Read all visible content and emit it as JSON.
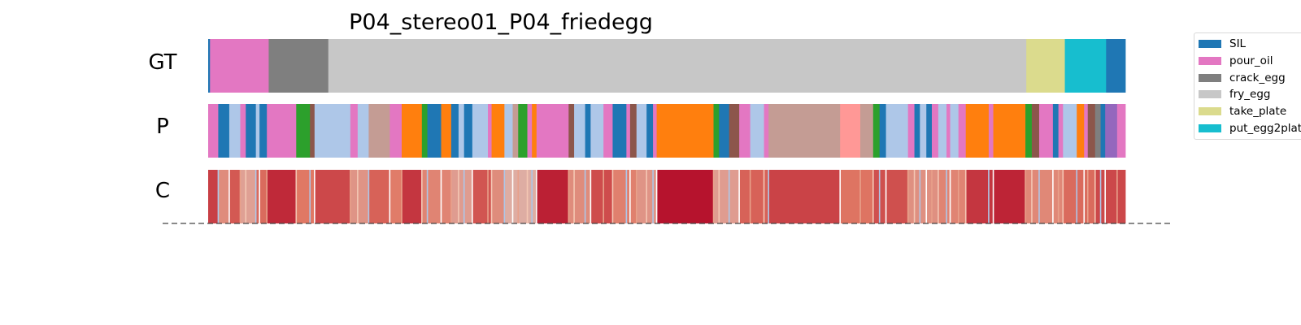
{
  "chart_data": {
    "type": "segmentation-timeline",
    "title": "P04_stereo01_P04_friedegg",
    "rows": [
      "GT",
      "P",
      "C"
    ],
    "legend": [
      {
        "name": "SIL",
        "color": "#1f77b4"
      },
      {
        "name": "pour_oil",
        "color": "#e377c2"
      },
      {
        "name": "crack_egg",
        "color": "#7f7f7f"
      },
      {
        "name": "fry_egg",
        "color": "#c7c7c7"
      },
      {
        "name": "take_plate",
        "color": "#dbdb8d"
      },
      {
        "name": "put_egg2plate",
        "color": "#17becf"
      }
    ],
    "x_range": [
      0,
      100
    ],
    "gt_segments": [
      {
        "label": "SIL",
        "start": 0,
        "end": 0.2
      },
      {
        "label": "pour_oil",
        "start": 0.2,
        "end": 6.6
      },
      {
        "label": "crack_egg",
        "start": 6.6,
        "end": 13.1
      },
      {
        "label": "fry_egg",
        "start": 13.1,
        "end": 89.2
      },
      {
        "label": "take_plate",
        "start": 89.2,
        "end": 93.4
      },
      {
        "label": "put_egg2plate",
        "start": 93.4,
        "end": 97.9
      },
      {
        "label": "SIL",
        "start": 97.9,
        "end": 100
      }
    ],
    "pred_segments": [
      {
        "color": "#e377c2",
        "start": 0,
        "end": 1.1
      },
      {
        "color": "#1f77b4",
        "start": 1.1,
        "end": 2.3
      },
      {
        "color": "#aec7e8",
        "start": 2.3,
        "end": 3.5
      },
      {
        "color": "#e377c2",
        "start": 3.5,
        "end": 4.1
      },
      {
        "color": "#1f77b4",
        "start": 4.1,
        "end": 5.2
      },
      {
        "color": "#aec7e8",
        "start": 5.2,
        "end": 5.6
      },
      {
        "color": "#1f77b4",
        "start": 5.6,
        "end": 6.4
      },
      {
        "color": "#e377c2",
        "start": 6.4,
        "end": 9.6
      },
      {
        "color": "#2ca02c",
        "start": 9.6,
        "end": 11.1
      },
      {
        "color": "#8c564b",
        "start": 11.1,
        "end": 11.6
      },
      {
        "color": "#aec7e8",
        "start": 11.6,
        "end": 15.5
      },
      {
        "color": "#e377c2",
        "start": 15.5,
        "end": 16.3
      },
      {
        "color": "#aec7e8",
        "start": 16.3,
        "end": 17.5
      },
      {
        "color": "#c49c94",
        "start": 17.5,
        "end": 19.8
      },
      {
        "color": "#e377c2",
        "start": 19.8,
        "end": 21.1
      },
      {
        "color": "#ff7f0e",
        "start": 21.1,
        "end": 23.3
      },
      {
        "color": "#2ca02c",
        "start": 23.3,
        "end": 23.9
      },
      {
        "color": "#1f77b4",
        "start": 23.9,
        "end": 25.4
      },
      {
        "color": "#ff7f0e",
        "start": 25.4,
        "end": 26.5
      },
      {
        "color": "#1f77b4",
        "start": 26.5,
        "end": 27.3
      },
      {
        "color": "#aec7e8",
        "start": 27.3,
        "end": 27.9
      },
      {
        "color": "#1f77b4",
        "start": 27.9,
        "end": 28.8
      },
      {
        "color": "#aec7e8",
        "start": 28.8,
        "end": 30.5
      },
      {
        "color": "#e377c2",
        "start": 30.5,
        "end": 30.9
      },
      {
        "color": "#ff7f0e",
        "start": 30.9,
        "end": 32.3
      },
      {
        "color": "#aec7e8",
        "start": 32.3,
        "end": 33.2
      },
      {
        "color": "#c49c94",
        "start": 33.2,
        "end": 33.8
      },
      {
        "color": "#2ca02c",
        "start": 33.8,
        "end": 34.8
      },
      {
        "color": "#e377c2",
        "start": 34.8,
        "end": 35.3
      },
      {
        "color": "#ff7f0e",
        "start": 35.3,
        "end": 35.8
      },
      {
        "color": "#e377c2",
        "start": 35.8,
        "end": 39.3
      },
      {
        "color": "#8c564b",
        "start": 39.3,
        "end": 39.9
      },
      {
        "color": "#aec7e8",
        "start": 39.9,
        "end": 41.1
      },
      {
        "color": "#1f77b4",
        "start": 41.1,
        "end": 41.7
      },
      {
        "color": "#aec7e8",
        "start": 41.7,
        "end": 43.1
      },
      {
        "color": "#e377c2",
        "start": 43.1,
        "end": 44.1
      },
      {
        "color": "#1f77b4",
        "start": 44.1,
        "end": 45.6
      },
      {
        "color": "#e377c2",
        "start": 45.6,
        "end": 46.0
      },
      {
        "color": "#8c564b",
        "start": 46.0,
        "end": 46.7
      },
      {
        "color": "#aec7e8",
        "start": 46.7,
        "end": 47.8
      },
      {
        "color": "#1f77b4",
        "start": 47.8,
        "end": 48.5
      },
      {
        "color": "#e377c2",
        "start": 48.5,
        "end": 48.9
      },
      {
        "color": "#ff7f0e",
        "start": 48.9,
        "end": 55.1
      },
      {
        "color": "#2ca02c",
        "start": 55.1,
        "end": 55.7
      },
      {
        "color": "#1f77b4",
        "start": 55.7,
        "end": 56.8
      },
      {
        "color": "#8c564b",
        "start": 56.8,
        "end": 57.9
      },
      {
        "color": "#e377c2",
        "start": 57.9,
        "end": 59.1
      },
      {
        "color": "#aec7e8",
        "start": 59.1,
        "end": 60.6
      },
      {
        "color": "#e377c2",
        "start": 60.6,
        "end": 61.1
      },
      {
        "color": "#c49c94",
        "start": 61.1,
        "end": 68.9
      },
      {
        "color": "#ff9896",
        "start": 68.9,
        "end": 71.1
      },
      {
        "color": "#c49c94",
        "start": 71.1,
        "end": 72.5
      },
      {
        "color": "#2ca02c",
        "start": 72.5,
        "end": 73.2
      },
      {
        "color": "#1f77b4",
        "start": 73.2,
        "end": 73.9
      },
      {
        "color": "#aec7e8",
        "start": 73.9,
        "end": 76.3
      },
      {
        "color": "#e377c2",
        "start": 76.3,
        "end": 77.0
      },
      {
        "color": "#1f77b4",
        "start": 77.0,
        "end": 77.6
      },
      {
        "color": "#aec7e8",
        "start": 77.6,
        "end": 78.3
      },
      {
        "color": "#1f77b4",
        "start": 78.3,
        "end": 78.9
      },
      {
        "color": "#e377c2",
        "start": 78.9,
        "end": 79.6
      },
      {
        "color": "#aec7e8",
        "start": 79.6,
        "end": 80.5
      },
      {
        "color": "#e377c2",
        "start": 80.5,
        "end": 80.9
      },
      {
        "color": "#aec7e8",
        "start": 80.9,
        "end": 81.8
      },
      {
        "color": "#e377c2",
        "start": 81.8,
        "end": 82.6
      },
      {
        "color": "#ff7f0e",
        "start": 82.6,
        "end": 85.1
      },
      {
        "color": "#e377c2",
        "start": 85.1,
        "end": 85.6
      },
      {
        "color": "#ff7f0e",
        "start": 85.6,
        "end": 89.1
      },
      {
        "color": "#2ca02c",
        "start": 89.1,
        "end": 89.8
      },
      {
        "color": "#8c564b",
        "start": 89.8,
        "end": 90.6
      },
      {
        "color": "#e377c2",
        "start": 90.6,
        "end": 92.1
      },
      {
        "color": "#1f77b4",
        "start": 92.1,
        "end": 92.7
      },
      {
        "color": "#e377c2",
        "start": 92.7,
        "end": 93.2
      },
      {
        "color": "#aec7e8",
        "start": 93.2,
        "end": 94.7
      },
      {
        "color": "#ff7f0e",
        "start": 94.7,
        "end": 95.5
      },
      {
        "color": "#e377c2",
        "start": 95.5,
        "end": 95.9
      },
      {
        "color": "#8c564b",
        "start": 95.9,
        "end": 96.7
      },
      {
        "color": "#7f7f7f",
        "start": 96.7,
        "end": 97.3
      },
      {
        "color": "#1f77b4",
        "start": 97.3,
        "end": 97.8
      },
      {
        "color": "#9467bd",
        "start": 97.8,
        "end": 99.1
      },
      {
        "color": "#e377c2",
        "start": 99.1,
        "end": 100
      }
    ],
    "confidence_segments": [
      {
        "start": 0,
        "end": 1.1,
        "value": 0.88
      },
      {
        "start": 1.1,
        "end": 2.3,
        "value": 0.7
      },
      {
        "start": 2.3,
        "end": 3.5,
        "value": 0.82
      },
      {
        "start": 3.5,
        "end": 5.2,
        "value": 0.65
      },
      {
        "start": 5.2,
        "end": 6.4,
        "value": 0.78
      },
      {
        "start": 6.4,
        "end": 9.6,
        "value": 0.93
      },
      {
        "start": 9.6,
        "end": 11.6,
        "value": 0.75
      },
      {
        "start": 11.6,
        "end": 15.5,
        "value": 0.86
      },
      {
        "start": 15.5,
        "end": 17.5,
        "value": 0.68
      },
      {
        "start": 17.5,
        "end": 19.8,
        "value": 0.8
      },
      {
        "start": 19.8,
        "end": 21.1,
        "value": 0.74
      },
      {
        "start": 21.1,
        "end": 23.3,
        "value": 0.9
      },
      {
        "start": 23.3,
        "end": 26.5,
        "value": 0.72
      },
      {
        "start": 26.5,
        "end": 28.8,
        "value": 0.66
      },
      {
        "start": 28.8,
        "end": 30.9,
        "value": 0.83
      },
      {
        "start": 30.9,
        "end": 32.3,
        "value": 0.7
      },
      {
        "start": 32.3,
        "end": 35.8,
        "value": 0.62
      },
      {
        "start": 35.8,
        "end": 39.3,
        "value": 0.95
      },
      {
        "start": 39.3,
        "end": 41.7,
        "value": 0.7
      },
      {
        "start": 41.7,
        "end": 44.1,
        "value": 0.85
      },
      {
        "start": 44.1,
        "end": 46.7,
        "value": 0.73
      },
      {
        "start": 46.7,
        "end": 48.9,
        "value": 0.68
      },
      {
        "start": 48.9,
        "end": 55.1,
        "value": 0.98
      },
      {
        "start": 55.1,
        "end": 57.9,
        "value": 0.66
      },
      {
        "start": 57.9,
        "end": 61.1,
        "value": 0.8
      },
      {
        "start": 61.1,
        "end": 68.9,
        "value": 0.87
      },
      {
        "start": 68.9,
        "end": 72.5,
        "value": 0.76
      },
      {
        "start": 72.5,
        "end": 76.3,
        "value": 0.84
      },
      {
        "start": 76.3,
        "end": 79.6,
        "value": 0.69
      },
      {
        "start": 79.6,
        "end": 82.6,
        "value": 0.72
      },
      {
        "start": 82.6,
        "end": 85.6,
        "value": 0.9
      },
      {
        "start": 85.6,
        "end": 89.1,
        "value": 0.94
      },
      {
        "start": 89.1,
        "end": 93.2,
        "value": 0.71
      },
      {
        "start": 93.2,
        "end": 96.7,
        "value": 0.78
      },
      {
        "start": 96.7,
        "end": 100,
        "value": 0.86
      }
    ]
  }
}
